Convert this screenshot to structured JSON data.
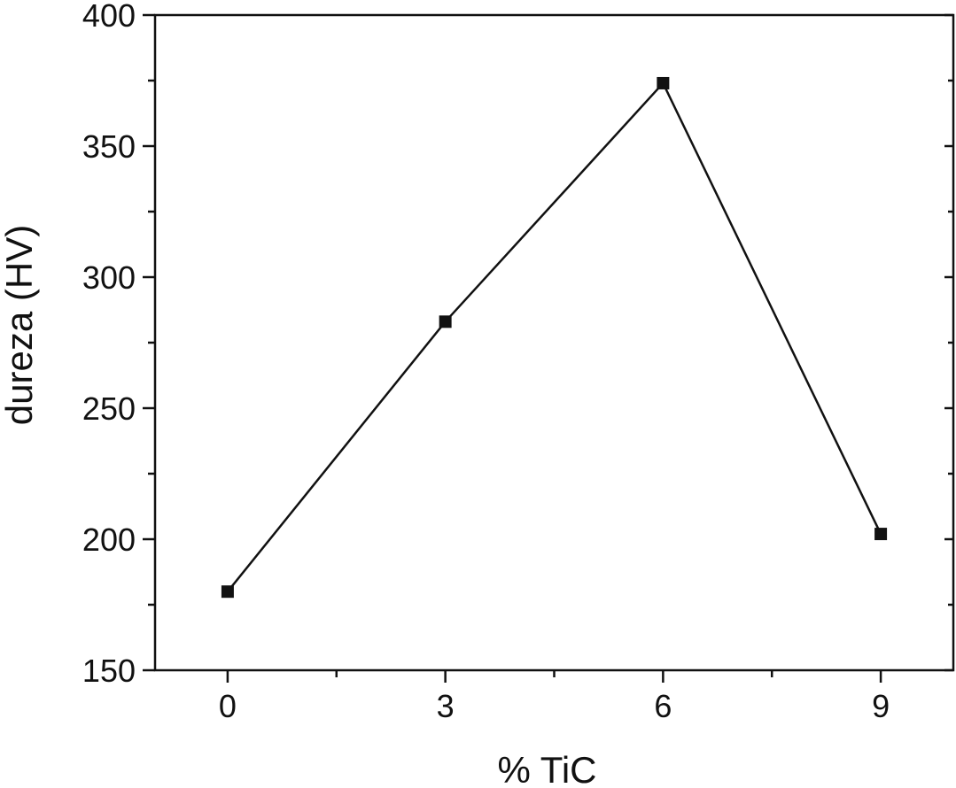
{
  "chart_data": {
    "type": "line",
    "xlabel": "% TiC",
    "ylabel": "dureza (HV)",
    "x": [
      0,
      3,
      6,
      9
    ],
    "series": [
      {
        "values": [
          180,
          283,
          374,
          202
        ]
      }
    ],
    "xlim": [
      -1,
      10
    ],
    "ylim": [
      150,
      400
    ],
    "xticks": [
      0,
      3,
      6,
      9
    ],
    "xticks_minor": [
      1.5,
      4.5,
      7.5
    ],
    "yticks": [
      150,
      200,
      250,
      300,
      350,
      400
    ],
    "yticks_minor": [
      175,
      225,
      275,
      325,
      375
    ],
    "grid": false,
    "legend": "none",
    "colors": {
      "line": "#111111",
      "marker": "#111111",
      "axis": "#111111"
    }
  }
}
